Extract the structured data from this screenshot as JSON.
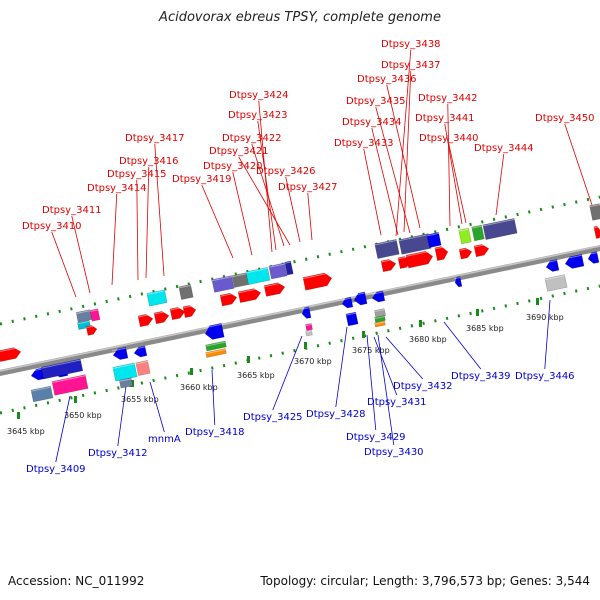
{
  "title": "Acidovorax ebreus TPSY, complete genome",
  "footer": {
    "accession": "Accession: NC_011992",
    "stats": "Topology: circular; Length: 3,796,573 bp; Genes: 3,544"
  },
  "ticks": [
    "3645 kbp",
    "3650 kbp",
    "3655 kbp",
    "3660 kbp",
    "3665 kbp",
    "3670 kbp",
    "3675 kbp",
    "3680 kbp",
    "3685 kbp",
    "3690 kbp"
  ],
  "top_labels": [
    "Dtpsy_3438",
    "Dtpsy_3437",
    "Dtpsy_3436",
    "Dtpsy_3442",
    "Dtpsy_3435",
    "Dtpsy_3441",
    "Dtpsy_3450",
    "Dtpsy_3424",
    "Dtpsy_3434",
    "Dtpsy_3423",
    "Dtpsy_3440",
    "Dtpsy_3417",
    "Dtpsy_3422",
    "Dtpsy_3433",
    "Dtpsy_3444",
    "Dtpsy_3421",
    "Dtpsy_3416",
    "Dtpsy_3420",
    "Dtpsy_3426",
    "Dtpsy_3415",
    "Dtpsy_3419",
    "Dtpsy_3427",
    "Dtpsy_3414",
    "Dtpsy_3411",
    "Dtpsy_3410"
  ],
  "bottom_labels": [
    "Dtpsy_3432",
    "Dtpsy_3439",
    "Dtpsy_3446",
    "Dtpsy_3431",
    "Dtpsy_3425",
    "Dtpsy_3428",
    "Dtpsy_3418",
    "Dtpsy_3429",
    "mnmA",
    "Dtpsy_3412",
    "Dtpsy_3430",
    "Dtpsy_3409"
  ],
  "colors": {
    "forward": "#ff0000",
    "reverse": "#0000ee",
    "top_label": "#e00000",
    "bottom_label": "#0000cc",
    "backbone": "#8a8a8a",
    "tick_dots": "#1a8a1a"
  }
}
